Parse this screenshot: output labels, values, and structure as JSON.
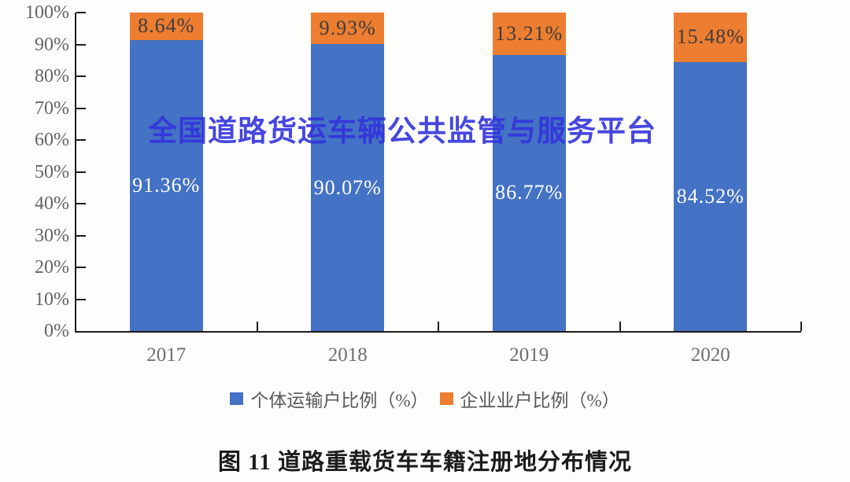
{
  "watermark": {
    "text": "全国道路货运车辆公共监管与服务平台",
    "color": "#3333dd"
  },
  "caption": "图 11 道路重载货车车籍注册地分布情况",
  "chart_data": {
    "type": "bar",
    "stacked": true,
    "title": "图 11 道路重载货车车籍注册地分布情况",
    "categories": [
      "2017",
      "2018",
      "2019",
      "2020"
    ],
    "series": [
      {
        "name": "个体运输户比例（%）",
        "color": "#4472C4",
        "values": [
          91.36,
          90.07,
          86.77,
          84.52
        ],
        "labels": [
          "91.36%",
          "90.07%",
          "86.77%",
          "84.52%"
        ],
        "label_color": "#ffffff"
      },
      {
        "name": "企业业户比例（%）",
        "color": "#ED7D31",
        "values": [
          8.64,
          9.93,
          13.21,
          15.48
        ],
        "labels": [
          "8.64%",
          "9.93%",
          "13.21%",
          "15.48%"
        ],
        "label_color": "#3d3d3d"
      }
    ],
    "xlabel": "",
    "ylabel": "",
    "ylim": [
      0,
      100
    ],
    "y_axis": {
      "tick_step": 10,
      "tick_labels": [
        "0%",
        "10%",
        "20%",
        "30%",
        "40%",
        "50%",
        "60%",
        "70%",
        "80%",
        "90%",
        "100%"
      ]
    },
    "grid": false,
    "legend_position": "bottom"
  }
}
